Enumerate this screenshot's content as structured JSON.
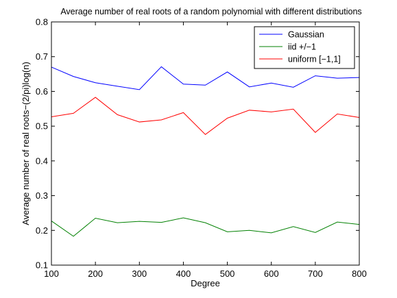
{
  "chart_data": {
    "type": "line",
    "title": "Average number of real roots of a random polynomial with different distributions",
    "xlabel": "Degree",
    "ylabel": "Average number of real roots−(2/pi)log(n)",
    "xlim": [
      100,
      800
    ],
    "ylim": [
      0.1,
      0.8
    ],
    "xticks": [
      100,
      200,
      300,
      400,
      500,
      600,
      700,
      800
    ],
    "yticks": [
      0.1,
      0.2,
      0.3,
      0.4,
      0.5,
      0.6,
      0.7,
      0.8
    ],
    "xtick_labels": [
      "100",
      "200",
      "300",
      "400",
      "500",
      "600",
      "700",
      "800"
    ],
    "ytick_labels": [
      "0.1",
      "0.2",
      "0.3",
      "0.4",
      "0.5",
      "0.6",
      "0.7",
      "0.8"
    ],
    "grid": false,
    "legend_position": "top-right",
    "x": [
      100,
      150,
      200,
      250,
      300,
      350,
      400,
      450,
      500,
      550,
      600,
      650,
      700,
      750,
      800
    ],
    "series": [
      {
        "name": "Gaussian",
        "color": "#0000ff",
        "values": [
          0.67,
          0.643,
          0.625,
          0.615,
          0.605,
          0.671,
          0.621,
          0.618,
          0.656,
          0.613,
          0.624,
          0.612,
          0.645,
          0.638,
          0.64
        ]
      },
      {
        "name": "iid +/−1",
        "color": "#008000",
        "values": [
          0.227,
          0.183,
          0.235,
          0.222,
          0.226,
          0.223,
          0.236,
          0.222,
          0.196,
          0.2,
          0.193,
          0.211,
          0.194,
          0.224,
          0.217
        ]
      },
      {
        "name": "uniform [−1,1]",
        "color": "#ff0000",
        "values": [
          0.527,
          0.537,
          0.583,
          0.533,
          0.512,
          0.518,
          0.539,
          0.476,
          0.523,
          0.546,
          0.541,
          0.549,
          0.482,
          0.535,
          0.525
        ]
      }
    ]
  }
}
